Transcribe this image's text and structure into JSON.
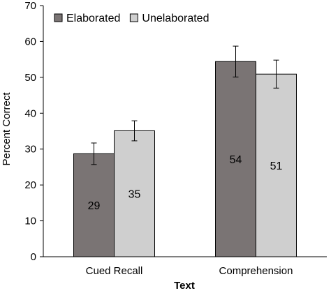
{
  "chart_data": {
    "type": "bar",
    "categories": [
      "Cued Recall",
      "Comprehension"
    ],
    "series": [
      {
        "name": "Elaborated",
        "values": [
          28.7,
          54.4
        ],
        "errors": [
          3.0,
          4.3
        ],
        "labels": [
          "29",
          "54"
        ],
        "color": "#7a7474"
      },
      {
        "name": "Unelaborated",
        "values": [
          35.1,
          50.9
        ],
        "errors": [
          2.8,
          3.9
        ],
        "labels": [
          "35",
          "51"
        ],
        "color": "#cfcfcf"
      }
    ],
    "xlabel": "Text",
    "ylabel": "Percent Correct",
    "ylim": [
      0,
      70
    ],
    "yticks": [
      "0",
      "10",
      "20",
      "30",
      "40",
      "50",
      "60",
      "70"
    ],
    "grid": false,
    "legend_position": "top-left"
  }
}
